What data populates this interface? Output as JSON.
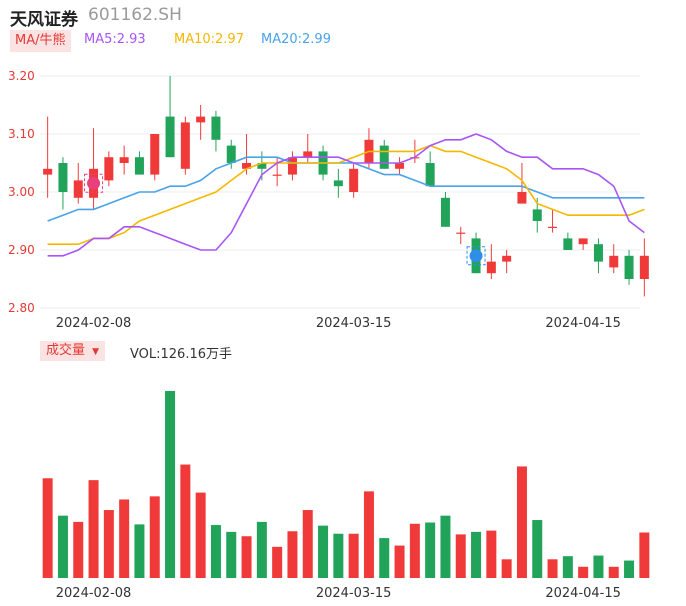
{
  "header": {
    "name": "天风证券",
    "code": "601162.SH"
  },
  "ma_bar": {
    "tag": "MA/牛熊",
    "items": [
      {
        "label": "MA5:2.93",
        "color": "#a855f7"
      },
      {
        "label": "MA10:2.97",
        "color": "#f5b800"
      },
      {
        "label": "MA20:2.99",
        "color": "#4aa3e8"
      }
    ]
  },
  "volume_bar": {
    "tag": "成交量",
    "text": "VOL:126.16万手"
  },
  "colors": {
    "up": "#f03a3a",
    "down": "#22a35a",
    "ma5": "#a855f7",
    "ma10": "#f5b800",
    "ma20": "#4aa3e8"
  },
  "markers": [
    {
      "icon": "bull-badge-icon",
      "index": 3,
      "color": "#e8407a"
    },
    {
      "icon": "bear-badge-icon",
      "index": 28,
      "color": "#2f8fe8"
    }
  ],
  "chart_data": [
    {
      "type": "candlestick",
      "ylim": [
        2.8,
        3.2
      ],
      "y_ticks": [
        "3.20",
        "3.10",
        "3.00",
        "2.90",
        "2.80"
      ],
      "x_tick_labels": [
        {
          "index": 3,
          "label": "2024-02-08"
        },
        {
          "index": 20,
          "label": "2024-03-15"
        },
        {
          "index": 35,
          "label": "2024-04-15"
        }
      ],
      "candles": [
        {
          "o": 3.03,
          "h": 3.13,
          "l": 2.99,
          "c": 3.04
        },
        {
          "o": 3.05,
          "h": 3.06,
          "l": 2.97,
          "c": 3.0
        },
        {
          "o": 2.99,
          "h": 3.05,
          "l": 2.98,
          "c": 3.02
        },
        {
          "o": 2.99,
          "h": 3.11,
          "l": 2.97,
          "c": 3.04
        },
        {
          "o": 3.02,
          "h": 3.07,
          "l": 3.01,
          "c": 3.06
        },
        {
          "o": 3.05,
          "h": 3.08,
          "l": 3.03,
          "c": 3.06
        },
        {
          "o": 3.06,
          "h": 3.07,
          "l": 3.03,
          "c": 3.03
        },
        {
          "o": 3.03,
          "h": 3.1,
          "l": 3.02,
          "c": 3.1
        },
        {
          "o": 3.13,
          "h": 3.2,
          "l": 3.06,
          "c": 3.06
        },
        {
          "o": 3.04,
          "h": 3.13,
          "l": 3.03,
          "c": 3.12
        },
        {
          "o": 3.12,
          "h": 3.15,
          "l": 3.09,
          "c": 3.13
        },
        {
          "o": 3.13,
          "h": 3.14,
          "l": 3.07,
          "c": 3.09
        },
        {
          "o": 3.08,
          "h": 3.09,
          "l": 3.04,
          "c": 3.05
        },
        {
          "o": 3.04,
          "h": 3.1,
          "l": 3.03,
          "c": 3.05
        },
        {
          "o": 3.05,
          "h": 3.07,
          "l": 3.02,
          "c": 3.04
        },
        {
          "o": 3.03,
          "h": 3.06,
          "l": 3.01,
          "c": 3.03
        },
        {
          "o": 3.03,
          "h": 3.07,
          "l": 3.02,
          "c": 3.06
        },
        {
          "o": 3.06,
          "h": 3.1,
          "l": 3.05,
          "c": 3.07
        },
        {
          "o": 3.07,
          "h": 3.08,
          "l": 3.02,
          "c": 3.03
        },
        {
          "o": 3.02,
          "h": 3.04,
          "l": 2.99,
          "c": 3.01
        },
        {
          "o": 3.0,
          "h": 3.05,
          "l": 2.99,
          "c": 3.04
        },
        {
          "o": 3.05,
          "h": 3.11,
          "l": 3.04,
          "c": 3.09
        },
        {
          "o": 3.08,
          "h": 3.09,
          "l": 3.04,
          "c": 3.04
        },
        {
          "o": 3.04,
          "h": 3.06,
          "l": 3.03,
          "c": 3.05
        },
        {
          "o": 3.06,
          "h": 3.09,
          "l": 3.05,
          "c": 3.06
        },
        {
          "o": 3.05,
          "h": 3.07,
          "l": 3.01,
          "c": 3.01
        },
        {
          "o": 2.99,
          "h": 3.0,
          "l": 2.94,
          "c": 2.94
        },
        {
          "o": 2.93,
          "h": 2.94,
          "l": 2.91,
          "c": 2.93
        },
        {
          "o": 2.92,
          "h": 2.93,
          "l": 2.86,
          "c": 2.86
        },
        {
          "o": 2.86,
          "h": 2.91,
          "l": 2.85,
          "c": 2.88
        },
        {
          "o": 2.88,
          "h": 2.9,
          "l": 2.86,
          "c": 2.89
        },
        {
          "o": 2.98,
          "h": 3.05,
          "l": 2.98,
          "c": 3.0
        },
        {
          "o": 2.97,
          "h": 2.99,
          "l": 2.93,
          "c": 2.95
        },
        {
          "o": 2.94,
          "h": 2.97,
          "l": 2.93,
          "c": 2.94
        },
        {
          "o": 2.92,
          "h": 2.93,
          "l": 2.9,
          "c": 2.9
        },
        {
          "o": 2.91,
          "h": 2.92,
          "l": 2.9,
          "c": 2.92
        },
        {
          "o": 2.91,
          "h": 2.92,
          "l": 2.86,
          "c": 2.88
        },
        {
          "o": 2.87,
          "h": 2.91,
          "l": 2.86,
          "c": 2.89
        },
        {
          "o": 2.89,
          "h": 2.9,
          "l": 2.84,
          "c": 2.85
        },
        {
          "o": 2.85,
          "h": 2.92,
          "l": 2.82,
          "c": 2.89
        }
      ],
      "ma5": [
        2.89,
        2.89,
        2.9,
        2.92,
        2.92,
        2.94,
        2.94,
        2.93,
        2.92,
        2.91,
        2.9,
        2.9,
        2.93,
        2.98,
        3.03,
        3.05,
        3.06,
        3.06,
        3.06,
        3.06,
        3.05,
        3.05,
        3.05,
        3.05,
        3.06,
        3.08,
        3.09,
        3.09,
        3.1,
        3.09,
        3.07,
        3.06,
        3.06,
        3.04,
        3.04,
        3.04,
        3.03,
        3.01,
        2.95,
        2.93
      ],
      "ma10": [
        2.91,
        2.91,
        2.91,
        2.92,
        2.92,
        2.93,
        2.95,
        2.96,
        2.97,
        2.98,
        2.99,
        3.0,
        3.02,
        3.04,
        3.05,
        3.05,
        3.05,
        3.05,
        3.05,
        3.05,
        3.06,
        3.07,
        3.07,
        3.07,
        3.07,
        3.08,
        3.07,
        3.07,
        3.06,
        3.05,
        3.04,
        3.02,
        2.98,
        2.97,
        2.96,
        2.96,
        2.96,
        2.96,
        2.96,
        2.97
      ],
      "ma20": [
        2.95,
        2.96,
        2.97,
        2.97,
        2.98,
        2.99,
        3.0,
        3.0,
        3.01,
        3.01,
        3.02,
        3.04,
        3.05,
        3.06,
        3.06,
        3.06,
        3.05,
        3.05,
        3.05,
        3.05,
        3.05,
        3.04,
        3.03,
        3.03,
        3.02,
        3.01,
        3.01,
        3.01,
        3.01,
        3.01,
        3.01,
        3.01,
        3.0,
        2.99,
        2.99,
        2.99,
        2.99,
        2.99,
        2.99,
        2.99
      ]
    },
    {
      "type": "bar",
      "name": "成交量",
      "x_tick_labels": [
        {
          "index": 3,
          "label": "2024-02-08"
        },
        {
          "index": 20,
          "label": "2024-03-15"
        },
        {
          "index": 35,
          "label": "2024-04-15"
        }
      ],
      "ylim": [
        0,
        300
      ],
      "values": [
        160,
        100,
        90,
        157,
        109,
        126,
        86,
        131,
        300,
        182,
        137,
        85,
        74,
        67,
        90,
        50,
        75,
        109,
        84,
        71,
        71,
        139,
        64,
        52,
        87,
        89,
        100,
        70,
        74,
        76,
        30,
        179,
        93,
        30,
        35,
        18,
        36,
        18,
        28,
        73
      ]
    }
  ]
}
